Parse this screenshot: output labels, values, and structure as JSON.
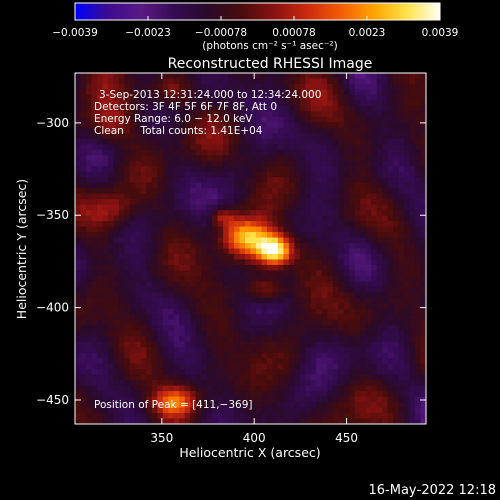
{
  "chart_data": {
    "type": "heatmap",
    "title": "Reconstructed RHESSI Image",
    "xlabel": "Heliocentric X (arcsec)",
    "ylabel": "Heliocentric Y (arcsec)",
    "xlim": [
      303,
      493
    ],
    "ylim": [
      -463,
      -273
    ],
    "x_ticks": [
      350,
      400,
      450
    ],
    "x_tick_labels": [
      "350",
      "400",
      "450"
    ],
    "y_ticks": [
      -300,
      -350,
      -400,
      -450
    ],
    "y_tick_labels": [
      "−300",
      "−350",
      "−400",
      "−450"
    ],
    "colorbar": {
      "range": [
        -0.0039,
        0.0039
      ],
      "tick_labels": [
        "−0.0039",
        "−0.0023",
        "−0.00078",
        "0.00078",
        "0.0023",
        "0.0039"
      ],
      "unit_label": "(photons cm⁻² s⁻¹ asec⁻²)"
    },
    "annotations": [
      "3‑Sep‑2013 12:31:24.000 to 12:34:24.000",
      "Detectors: 3F 4F 5F 6F 7F 8F, Att 0",
      "Energy Range: 6.0 − 12.0 keV",
      "Clean     Total counts: 1.41E+04",
      "Position of Peak = [411,−369]"
    ],
    "peak": [
      411,
      -369
    ],
    "sources": [
      {
        "x": 411,
        "y": -369,
        "sx": 7,
        "sy": 6,
        "amp": 1.0
      },
      {
        "x": 395,
        "y": -362,
        "sx": 9,
        "sy": 7,
        "amp": 0.7
      },
      {
        "x": 383,
        "y": -351,
        "sx": 5,
        "sy": 4,
        "amp": 0.38
      },
      {
        "x": 406,
        "y": -390,
        "sx": 7,
        "sy": 5,
        "amp": 0.42
      },
      {
        "x": 357,
        "y": -451,
        "sx": 9,
        "sy": 6,
        "amp": 0.58
      },
      {
        "x": 322,
        "y": -302,
        "sx": 9,
        "sy": 8,
        "amp": 0.34
      },
      {
        "x": 356,
        "y": -282,
        "sx": 8,
        "sy": 6,
        "amp": 0.32
      },
      {
        "x": 322,
        "y": -347,
        "sx": 9,
        "sy": 7,
        "amp": 0.28
      }
    ],
    "colormap": [
      "#0000ff",
      "#3c0c90",
      "#5a1a84",
      "#350b52",
      "#2a0a2a",
      "#470c0c",
      "#8a1212",
      "#c92b0e",
      "#f35c06",
      "#ffa300",
      "#ffe24a",
      "#fffff4"
    ]
  },
  "footer": {
    "timestamp": "16‑May‑2022 12:18"
  }
}
